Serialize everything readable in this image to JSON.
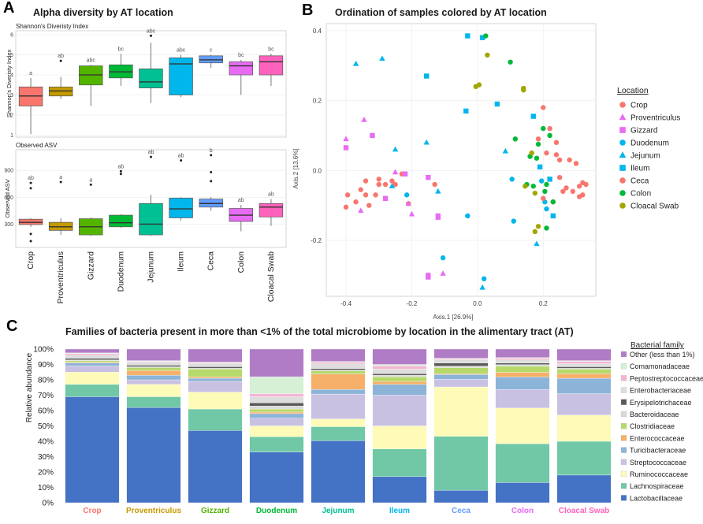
{
  "panels": {
    "a": {
      "letter": "A",
      "title": "Alpha diversity by AT location"
    },
    "b": {
      "letter": "B",
      "title": "Ordination of samples colored by AT location"
    },
    "c": {
      "letter": "C",
      "title": "Families of bacteria present in more than <1% of the total microbiome by location in the alimentary  tract (AT)"
    }
  },
  "colors": {
    "Crop": "#f8766d",
    "Proventriculus": "#c49a00",
    "Gizzard": "#53b400",
    "Duodenum": "#00b936",
    "Jejunum": "#00c094",
    "Ileum": "#00b6eb",
    "Ceca": "#629dff",
    "Colon": "#e76bf3",
    "Cloacal Swab": "#ff62bc"
  },
  "chart_data": [
    {
      "id": "shannon",
      "type": "box",
      "title": "Shannon's Diveristy Index",
      "ylabel": "Shannon's Diveristy Index",
      "ylim": [
        0.9,
        6.2
      ],
      "yticks": [
        1,
        2,
        3,
        4,
        5,
        6
      ],
      "categories": [
        "Crop",
        "Proventriculus",
        "Gizzard",
        "Duodenum",
        "Jejunum",
        "Ileum",
        "Ceca",
        "Colon",
        "Cloacal Swab"
      ],
      "boxes": [
        {
          "min": 1.05,
          "q1": 2.45,
          "median": 2.95,
          "q3": 3.4,
          "max": 3.85,
          "outliers": [],
          "letter": "a"
        },
        {
          "min": 2.8,
          "q1": 2.95,
          "median": 3.2,
          "q3": 3.4,
          "max": 3.9,
          "outliers": [
            4.7
          ],
          "letter": "ab"
        },
        {
          "min": 2.45,
          "q1": 3.5,
          "median": 4.0,
          "q3": 4.45,
          "max": 4.5,
          "outliers": [],
          "letter": "abc"
        },
        {
          "min": 3.45,
          "q1": 3.85,
          "median": 4.15,
          "q3": 4.5,
          "max": 5.05,
          "outliers": [],
          "letter": "bc"
        },
        {
          "min": 2.6,
          "q1": 3.35,
          "median": 3.65,
          "q3": 4.3,
          "max": 5.6,
          "outliers": [
            5.95
          ],
          "letter": "abc"
        },
        {
          "min": 2.9,
          "q1": 3.0,
          "median": 4.55,
          "q3": 4.85,
          "max": 5.0,
          "outliers": [],
          "letter": "abc"
        },
        {
          "min": 4.35,
          "q1": 4.6,
          "median": 4.75,
          "q3": 4.95,
          "max": 5.0,
          "outliers": [],
          "letter": "c"
        },
        {
          "min": 3.0,
          "q1": 4.0,
          "median": 4.45,
          "q3": 4.65,
          "max": 4.75,
          "outliers": [],
          "letter": "bc"
        },
        {
          "min": 3.45,
          "q1": 4.0,
          "median": 4.65,
          "q3": 4.95,
          "max": 5.05,
          "outliers": [],
          "letter": "bc"
        }
      ]
    },
    {
      "id": "asv",
      "type": "box",
      "title": "Observed ASV",
      "ylabel": "Observed ASV",
      "ylim": [
        40,
        1130
      ],
      "yticks": [
        300,
        600,
        900
      ],
      "categories": [
        "Crop",
        "Proventriculus",
        "Gizzard",
        "Duodenum",
        "Jejunum",
        "Ileum",
        "Ceca",
        "Colon",
        "Cloacal Swab"
      ],
      "boxes": [
        {
          "min": 270,
          "q1": 295,
          "median": 320,
          "q3": 355,
          "max": 365,
          "outliers": [
            760,
            700,
            190,
            110
          ],
          "letter": "ab"
        },
        {
          "min": 180,
          "q1": 230,
          "median": 270,
          "q3": 320,
          "max": 365,
          "outliers": [
            770
          ],
          "letter": "a"
        },
        {
          "min": 170,
          "q1": 180,
          "median": 270,
          "q3": 360,
          "max": 375,
          "outliers": [
            740
          ],
          "letter": "a"
        },
        {
          "min": 260,
          "q1": 270,
          "median": 315,
          "q3": 400,
          "max": 410,
          "outliers": [
            890,
            860
          ],
          "letter": "ab"
        },
        {
          "min": 170,
          "q1": 180,
          "median": 300,
          "q3": 530,
          "max": 630,
          "outliers": [
            1050
          ],
          "letter": "ab"
        },
        {
          "min": 340,
          "q1": 370,
          "median": 470,
          "q3": 590,
          "max": 600,
          "outliers": [
            1010
          ],
          "letter": "ab"
        },
        {
          "min": 450,
          "q1": 490,
          "median": 530,
          "q3": 580,
          "max": 600,
          "outliers": [
            1070,
            880,
            780
          ],
          "letter": "b"
        },
        {
          "min": 220,
          "q1": 330,
          "median": 400,
          "q3": 475,
          "max": 515,
          "outliers": [],
          "letter": "ab"
        },
        {
          "min": 280,
          "q1": 380,
          "median": 490,
          "q3": 530,
          "max": 580,
          "outliers": [],
          "letter": "ab"
        }
      ]
    },
    {
      "id": "ordination",
      "type": "scatter",
      "title": "Ordination of samples colored by AT location",
      "xlabel": "Axis.1   [26.9%]",
      "ylabel": "Axis.2   [13.6%]",
      "xlim": [
        -0.46,
        0.36
      ],
      "ylim": [
        -0.36,
        0.42
      ],
      "xticks": [
        -0.4,
        -0.2,
        0.0,
        0.2
      ],
      "yticks": [
        -0.2,
        0.0,
        0.2,
        0.4
      ],
      "legend_title": "Location",
      "legend": [
        {
          "name": "Crop",
          "shape": "circle",
          "color": "#f8766d"
        },
        {
          "name": "Proventriculus",
          "shape": "triangle",
          "color": "#e76bf3"
        },
        {
          "name": "Gizzard",
          "shape": "square",
          "color": "#e76bf3"
        },
        {
          "name": "Duodenum",
          "shape": "circle",
          "color": "#00b6eb"
        },
        {
          "name": "Jejunum",
          "shape": "triangle",
          "color": "#00b6eb"
        },
        {
          "name": "Ileum",
          "shape": "square",
          "color": "#00b6eb"
        },
        {
          "name": "Ceca",
          "shape": "circle",
          "color": "#f8766d"
        },
        {
          "name": "Colon",
          "shape": "circle",
          "color": "#00b936"
        },
        {
          "name": "Cloacal Swab",
          "shape": "circle",
          "color": "#a3a500"
        }
      ],
      "points": [
        {
          "g": "Crop",
          "pts": [
            [
              -0.395,
              -0.07
            ],
            [
              -0.4,
              -0.105
            ],
            [
              -0.37,
              -0.09
            ],
            [
              -0.33,
              -0.1
            ],
            [
              -0.355,
              -0.055
            ],
            [
              -0.34,
              -0.07
            ],
            [
              -0.31,
              -0.07
            ],
            [
              -0.34,
              -0.03
            ],
            [
              -0.3,
              -0.04
            ],
            [
              -0.26,
              -0.03
            ],
            [
              -0.28,
              -0.04
            ],
            [
              -0.25,
              -0.04
            ],
            [
              -0.23,
              -0.01
            ],
            [
              -0.21,
              -0.095
            ],
            [
              -0.13,
              -0.04
            ],
            [
              -0.3,
              -0.025
            ]
          ]
        },
        {
          "g": "Proventriculus",
          "pts": [
            [
              -0.4,
              0.09
            ],
            [
              -0.345,
              0.145
            ],
            [
              -0.355,
              -0.115
            ],
            [
              -0.21,
              -0.095
            ],
            [
              -0.12,
              -0.135
            ],
            [
              -0.2,
              -0.125
            ],
            [
              -0.105,
              -0.295
            ],
            [
              -0.25,
              -0.005
            ]
          ]
        },
        {
          "g": "Gizzard",
          "pts": [
            [
              -0.4,
              0.065
            ],
            [
              -0.32,
              0.1
            ],
            [
              -0.22,
              -0.01
            ],
            [
              -0.15,
              -0.02
            ],
            [
              -0.28,
              -0.08
            ],
            [
              -0.12,
              -0.13
            ],
            [
              -0.15,
              -0.305
            ],
            [
              -0.15,
              -0.3
            ]
          ]
        },
        {
          "g": "Duodenum",
          "pts": [
            [
              -0.215,
              -0.07
            ],
            [
              -0.105,
              -0.25
            ],
            [
              -0.03,
              -0.13
            ],
            [
              0.02,
              -0.31
            ],
            [
              0.105,
              -0.025
            ],
            [
              0.11,
              -0.145
            ],
            [
              0.195,
              -0.03
            ],
            [
              0.21,
              -0.11
            ],
            [
              0.205,
              -0.09
            ]
          ]
        },
        {
          "g": "Jejunum",
          "pts": [
            [
              -0.37,
              0.305
            ],
            [
              -0.29,
              0.32
            ],
            [
              -0.25,
              0.06
            ],
            [
              -0.155,
              0.08
            ],
            [
              -0.12,
              -0.06
            ],
            [
              -0.26,
              -0.045
            ],
            [
              0.015,
              -0.335
            ],
            [
              0.085,
              0.055
            ],
            [
              0.18,
              -0.21
            ]
          ]
        },
        {
          "g": "Ileum",
          "pts": [
            [
              -0.155,
              0.27
            ],
            [
              -0.035,
              0.17
            ],
            [
              -0.03,
              0.385
            ],
            [
              0.015,
              0.38
            ],
            [
              0.17,
              0.155
            ],
            [
              0.23,
              -0.13
            ],
            [
              0.22,
              -0.025
            ],
            [
              0.19,
              0.01
            ],
            [
              0.06,
              0.19
            ]
          ]
        },
        {
          "g": "Ceca",
          "pts": [
            [
              0.24,
              0.08
            ],
            [
              0.22,
              0.12
            ],
            [
              0.21,
              0.05
            ],
            [
              0.25,
              0.03
            ],
            [
              0.28,
              0.03
            ],
            [
              0.3,
              0.02
            ],
            [
              0.25,
              -0.02
            ],
            [
              0.26,
              -0.06
            ],
            [
              0.23,
              -0.09
            ],
            [
              0.27,
              -0.05
            ],
            [
              0.29,
              -0.06
            ],
            [
              0.31,
              -0.045
            ],
            [
              0.32,
              -0.035
            ],
            [
              0.33,
              -0.04
            ],
            [
              0.32,
              -0.07
            ],
            [
              0.31,
              -0.075
            ],
            [
              0.2,
              -0.08
            ],
            [
              0.24,
              0.045
            ],
            [
              0.2,
              0.18
            ],
            [
              0.185,
              0.09
            ]
          ]
        },
        {
          "g": "Colon",
          "pts": [
            [
              0.025,
              0.385
            ],
            [
              0.1,
              0.31
            ],
            [
              0.115,
              0.09
            ],
            [
              0.16,
              0.04
            ],
            [
              0.2,
              0.12
            ],
            [
              0.22,
              0.1
            ],
            [
              0.185,
              0.075
            ],
            [
              0.15,
              -0.04
            ],
            [
              0.17,
              -0.045
            ],
            [
              0.21,
              -0.04
            ],
            [
              0.205,
              -0.06
            ],
            [
              0.23,
              -0.09
            ],
            [
              0.21,
              -0.165
            ],
            [
              0.18,
              0.035
            ]
          ]
        },
        {
          "g": "Cloacal Swab",
          "pts": [
            [
              0.03,
              0.33
            ],
            [
              -0.005,
              0.24
            ],
            [
              0.005,
              0.245
            ],
            [
              0.14,
              0.23
            ],
            [
              0.14,
              0.235
            ],
            [
              0.165,
              0.05
            ],
            [
              0.145,
              -0.045
            ],
            [
              0.175,
              -0.065
            ],
            [
              0.185,
              -0.16
            ],
            [
              0.175,
              -0.175
            ]
          ]
        }
      ]
    },
    {
      "id": "families",
      "type": "stacked-bar",
      "title": "Families of bacteria present in more than <1% of the total microbiome by location in the alimentary  tract (AT)",
      "ylabel": "Relative abundance",
      "yticks": [
        "0%",
        "10%",
        "20%",
        "30%",
        "40%",
        "50%",
        "60%",
        "70%",
        "80%",
        "90%",
        "100%"
      ],
      "legend_title": "Bacterial family",
      "categories": [
        "Crop",
        "Proventriculus",
        "Gizzard",
        "Duodenum",
        "Jejunum",
        "Ileum",
        "Ceca",
        "Colon",
        "Cloacal Swab"
      ],
      "series": [
        {
          "name": "Lactobacillaceae",
          "color": "#4472c4",
          "values": [
            69,
            62,
            47,
            33,
            40,
            17,
            8,
            13,
            18
          ]
        },
        {
          "name": "Lachnospiraceae",
          "color": "#70c8a6",
          "values": [
            8,
            7,
            14,
            10,
            9,
            18,
            35,
            25,
            22
          ]
        },
        {
          "name": "Ruminococcaceae",
          "color": "#fdfbb7",
          "values": [
            8,
            8,
            11,
            7,
            5,
            15,
            32,
            23,
            17
          ]
        },
        {
          "name": "Streptococcaceae",
          "color": "#c9c1e2",
          "values": [
            4,
            3,
            7,
            5,
            16,
            20,
            5,
            12,
            14
          ]
        },
        {
          "name": "Turicibacteraceae",
          "color": "#8cb4d8",
          "values": [
            2,
            3,
            2,
            3,
            3,
            7,
            3,
            8,
            10
          ]
        },
        {
          "name": "Enterococcaceae",
          "color": "#f6b069",
          "values": [
            0.5,
            3,
            1,
            1,
            10,
            2,
            0.5,
            3,
            3
          ]
        },
        {
          "name": "Clostridiaceae",
          "color": "#b6d96c",
          "values": [
            1,
            2,
            5,
            2,
            2,
            3,
            4,
            4,
            3
          ]
        },
        {
          "name": "Bacteroidaceae",
          "color": "#d9d9d9",
          "values": [
            0.5,
            0.5,
            0.5,
            2,
            0.5,
            1,
            1,
            1,
            0.5
          ]
        },
        {
          "name": "Erysipelotrichaceae",
          "color": "#595959",
          "values": [
            1,
            1,
            1,
            2,
            1,
            1,
            2,
            1,
            1
          ]
        },
        {
          "name": "Enterobacteriaceae",
          "color": "#dddddd",
          "values": [
            2,
            2,
            2,
            4,
            3,
            3,
            2,
            2,
            2
          ]
        },
        {
          "name": "Peptostreptococcaceae",
          "color": "#f4b5d2",
          "values": [
            1,
            0.5,
            0.5,
            2,
            1,
            2,
            0.5,
            1,
            1.5
          ]
        },
        {
          "name": "Comamonadaceae",
          "color": "#d5f0d5",
          "values": [
            0.5,
            0.5,
            0.5,
            11,
            0.5,
            1,
            0.5,
            0.5,
            0.5
          ]
        },
        {
          "name": "Other (less than 1%)",
          "color": "#b07cc6",
          "values": [
            2.5,
            7.5,
            8.5,
            18,
            8,
            10,
            6,
            5.5,
            7.5
          ]
        }
      ]
    }
  ]
}
